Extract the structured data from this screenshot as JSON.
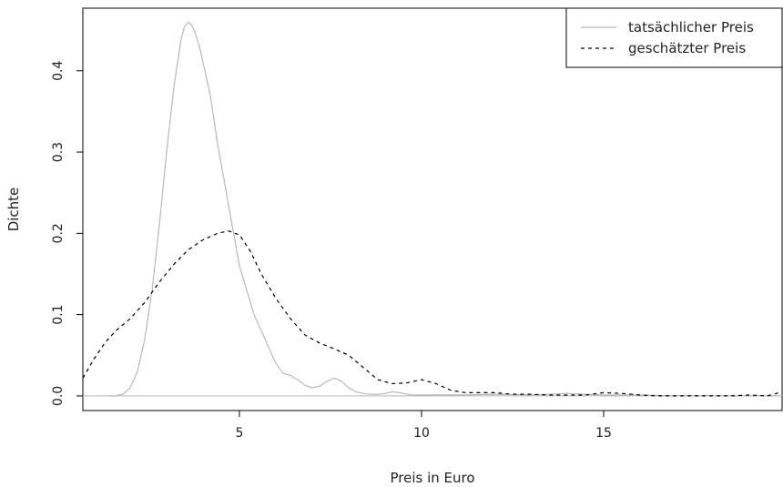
{
  "chart_data": {
    "type": "line",
    "title": "",
    "xlabel": "Preis in Euro",
    "ylabel": "Dichte",
    "xlim": [
      0.7,
      19.9
    ],
    "ylim": [
      -0.018,
      0.477
    ],
    "xticks": [
      5,
      10,
      15
    ],
    "yticks": [
      0.0,
      0.1,
      0.2,
      0.3,
      0.4
    ],
    "ytick_labels": [
      "0.0",
      "0.1",
      "0.2",
      "0.3",
      "0.4"
    ],
    "grid": false,
    "legend_position": "top-right",
    "baseline": 0,
    "series": [
      {
        "name": "tatsächlicher Preis",
        "color": "#b8b8b8",
        "dash": "solid",
        "x": [
          1.4,
          1.6,
          1.8,
          2.0,
          2.2,
          2.4,
          2.6,
          2.8,
          3.0,
          3.2,
          3.4,
          3.5,
          3.6,
          3.7,
          3.8,
          3.9,
          4.0,
          4.2,
          4.4,
          4.6,
          4.8,
          5.0,
          5.2,
          5.4,
          5.6,
          5.8,
          6.0,
          6.2,
          6.4,
          6.6,
          6.8,
          7.0,
          7.2,
          7.4,
          7.6,
          7.8,
          8.0,
          8.2,
          8.4,
          8.6,
          8.8,
          9.0,
          9.2,
          9.4,
          9.6,
          9.8,
          10.0,
          10.5,
          11.0,
          12.0,
          13.0,
          14.0,
          14.5,
          15.0,
          16.0,
          17.0,
          18.0,
          19.0,
          19.9
        ],
        "y": [
          0.0,
          0.0,
          0.002,
          0.01,
          0.03,
          0.07,
          0.13,
          0.21,
          0.3,
          0.38,
          0.44,
          0.455,
          0.46,
          0.455,
          0.445,
          0.43,
          0.41,
          0.37,
          0.31,
          0.26,
          0.21,
          0.16,
          0.13,
          0.1,
          0.08,
          0.06,
          0.04,
          0.028,
          0.025,
          0.02,
          0.013,
          0.01,
          0.012,
          0.018,
          0.022,
          0.018,
          0.01,
          0.005,
          0.003,
          0.002,
          0.002,
          0.003,
          0.005,
          0.004,
          0.002,
          0.001,
          0.001,
          0.001,
          0.001,
          0.002,
          0.001,
          0.003,
          0.002,
          0.001,
          0.001,
          0.0,
          0.0,
          0.0,
          0.0
        ]
      },
      {
        "name": "geschätzter Preis",
        "color": "#000000",
        "dash": "dashed",
        "x": [
          0.7,
          1.0,
          1.3,
          1.6,
          2.0,
          2.4,
          2.8,
          3.2,
          3.6,
          4.0,
          4.4,
          4.7,
          5.0,
          5.3,
          5.6,
          6.0,
          6.4,
          6.8,
          7.2,
          7.6,
          8.0,
          8.4,
          8.8,
          9.2,
          9.6,
          10.0,
          10.4,
          10.8,
          11.2,
          11.6,
          12.0,
          12.5,
          13.0,
          13.5,
          14.0,
          14.5,
          15.0,
          15.5,
          16.0,
          16.5,
          17.0,
          17.5,
          18.0,
          18.5,
          19.0,
          19.5,
          19.9
        ],
        "y": [
          0.022,
          0.045,
          0.065,
          0.08,
          0.095,
          0.115,
          0.14,
          0.162,
          0.18,
          0.192,
          0.2,
          0.203,
          0.198,
          0.178,
          0.15,
          0.12,
          0.095,
          0.075,
          0.065,
          0.058,
          0.05,
          0.035,
          0.02,
          0.015,
          0.016,
          0.02,
          0.015,
          0.007,
          0.004,
          0.004,
          0.004,
          0.002,
          0.002,
          0.001,
          0.001,
          0.001,
          0.004,
          0.003,
          0.001,
          0.0,
          0.0,
          0.0,
          0.0,
          0.0,
          0.001,
          0.0,
          0.005
        ]
      }
    ]
  }
}
